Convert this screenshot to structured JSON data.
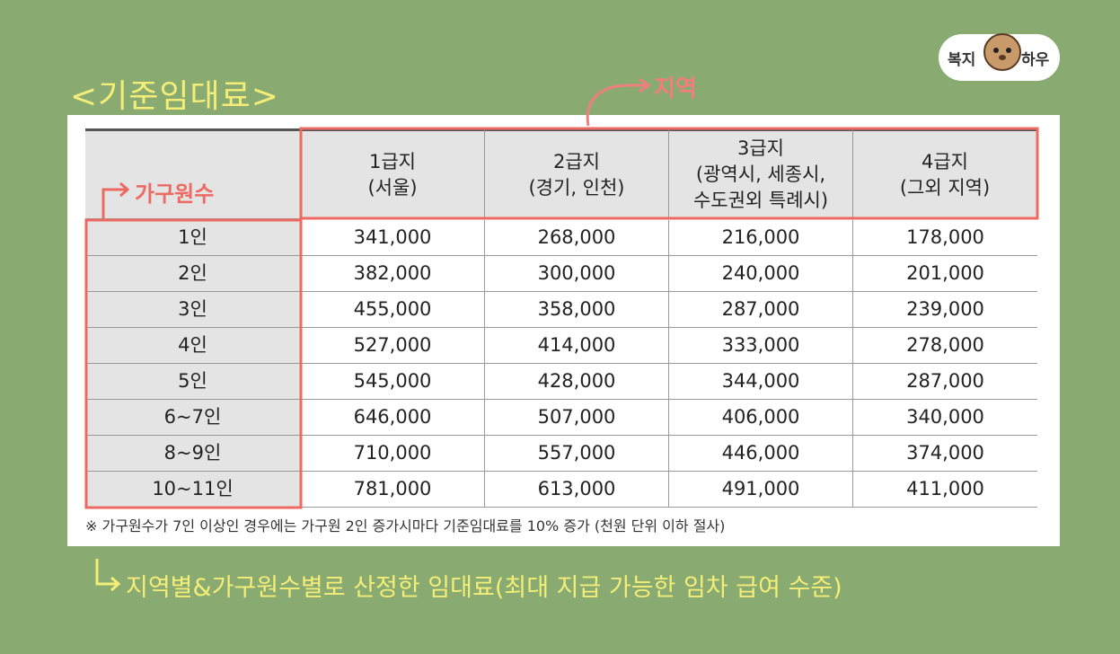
{
  "title": "<기준임대료>",
  "logo": [
    "복지",
    "하우"
  ],
  "annotations": {
    "region": "지역",
    "household": "가구원수"
  },
  "table": {
    "columns": [
      [
        "1급지",
        "(서울)"
      ],
      [
        "2급지",
        "(경기, 인천)"
      ],
      [
        "3급지",
        "(광역시, 세종시,",
        "수도권외 특례시)"
      ],
      [
        "4급지",
        "(그외 지역)"
      ]
    ],
    "rows": [
      [
        "1인",
        "341,000",
        "268,000",
        "216,000",
        "178,000"
      ],
      [
        "2인",
        "382,000",
        "300,000",
        "240,000",
        "201,000"
      ],
      [
        "3인",
        "455,000",
        "358,000",
        "287,000",
        "239,000"
      ],
      [
        "4인",
        "527,000",
        "414,000",
        "333,000",
        "278,000"
      ],
      [
        "5인",
        "545,000",
        "428,000",
        "344,000",
        "287,000"
      ],
      [
        "6~7인",
        "646,000",
        "507,000",
        "406,000",
        "340,000"
      ],
      [
        "8~9인",
        "710,000",
        "557,000",
        "446,000",
        "374,000"
      ],
      [
        "10~11인",
        "781,000",
        "613,000",
        "491,000",
        "411,000"
      ]
    ]
  },
  "footnote": "※ 가구원수가 7인 이상인 경우에는 가구원 2인 증가시마다 기준임대료를 10% 증가 (천원 단위 이하 절사)",
  "caption": "지역별&가구원수별로 산정한 임대료(최대 지급 가능한 임차 급여 수준)"
}
